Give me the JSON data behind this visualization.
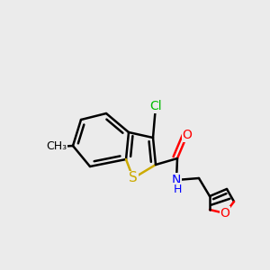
{
  "background_color": "#ebebeb",
  "atom_colors": {
    "C": "#000000",
    "N": "#0000ff",
    "O": "#ff0000",
    "S": "#ccaa00",
    "Cl": "#00bb00",
    "CH3": "#000000"
  },
  "bond_color": "#000000",
  "bond_width": 1.8,
  "font_size": 10,
  "figsize": [
    3.0,
    3.0
  ],
  "dpi": 100
}
